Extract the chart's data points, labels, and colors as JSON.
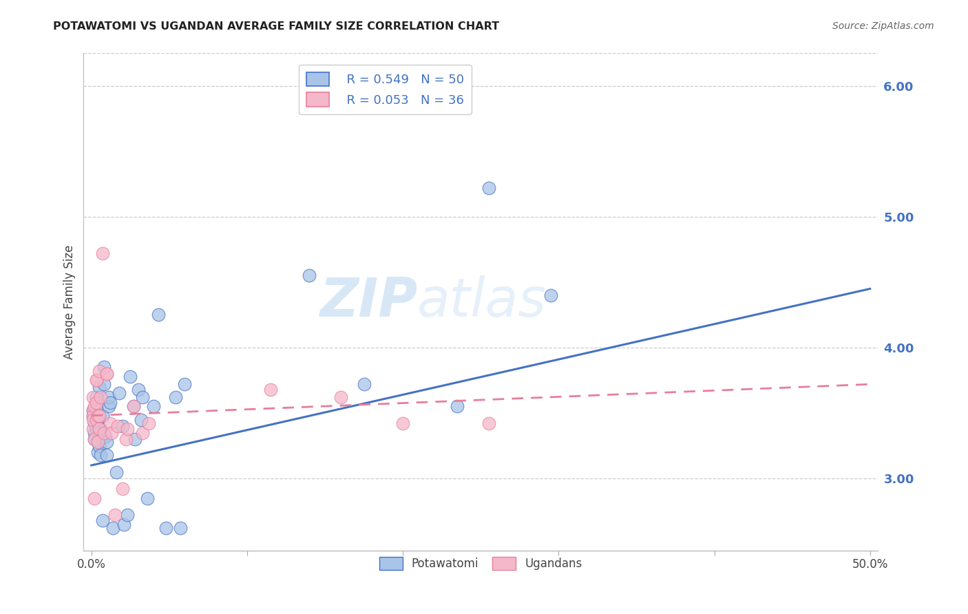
{
  "title": "POTAWATOMI VS UGANDAN AVERAGE FAMILY SIZE CORRELATION CHART",
  "source": "Source: ZipAtlas.com",
  "ylabel": "Average Family Size",
  "watermark_zip": "ZIP",
  "watermark_atlas": "atlas",
  "legend_blue_r": "R = 0.549",
  "legend_blue_n": "N = 50",
  "legend_pink_r": "R = 0.053",
  "legend_pink_n": "N = 36",
  "blue_color": "#A8C4E8",
  "pink_color": "#F5B8CA",
  "blue_edge_color": "#4472C4",
  "pink_edge_color": "#E87E9A",
  "blue_line_color": "#4472C4",
  "pink_line_color": "#E87E9A",
  "blue_scatter": [
    [
      0.001,
      3.52
    ],
    [
      0.001,
      3.48
    ],
    [
      0.002,
      3.35
    ],
    [
      0.002,
      3.3
    ],
    [
      0.002,
      3.42
    ],
    [
      0.003,
      3.38
    ],
    [
      0.003,
      3.55
    ],
    [
      0.003,
      3.62
    ],
    [
      0.004,
      3.28
    ],
    [
      0.004,
      3.2
    ],
    [
      0.004,
      3.45
    ],
    [
      0.005,
      3.38
    ],
    [
      0.005,
      3.7
    ],
    [
      0.005,
      3.25
    ],
    [
      0.006,
      3.18
    ],
    [
      0.006,
      3.38
    ],
    [
      0.007,
      3.48
    ],
    [
      0.007,
      2.68
    ],
    [
      0.008,
      3.72
    ],
    [
      0.008,
      3.85
    ],
    [
      0.009,
      3.32
    ],
    [
      0.01,
      3.18
    ],
    [
      0.01,
      3.28
    ],
    [
      0.011,
      3.55
    ],
    [
      0.011,
      3.62
    ],
    [
      0.012,
      3.58
    ],
    [
      0.014,
      2.62
    ],
    [
      0.016,
      3.05
    ],
    [
      0.018,
      3.65
    ],
    [
      0.02,
      3.4
    ],
    [
      0.021,
      2.65
    ],
    [
      0.023,
      2.72
    ],
    [
      0.025,
      3.78
    ],
    [
      0.027,
      3.55
    ],
    [
      0.028,
      3.3
    ],
    [
      0.03,
      3.68
    ],
    [
      0.032,
      3.45
    ],
    [
      0.033,
      3.62
    ],
    [
      0.036,
      2.85
    ],
    [
      0.04,
      3.55
    ],
    [
      0.043,
      4.25
    ],
    [
      0.048,
      2.62
    ],
    [
      0.054,
      3.62
    ],
    [
      0.057,
      2.62
    ],
    [
      0.06,
      3.72
    ],
    [
      0.14,
      4.55
    ],
    [
      0.175,
      3.72
    ],
    [
      0.235,
      3.55
    ],
    [
      0.255,
      5.22
    ],
    [
      0.295,
      4.4
    ]
  ],
  "pink_scatter": [
    [
      0.001,
      3.52
    ],
    [
      0.001,
      3.48
    ],
    [
      0.001,
      3.38
    ],
    [
      0.001,
      3.45
    ],
    [
      0.001,
      3.62
    ],
    [
      0.002,
      3.55
    ],
    [
      0.002,
      3.3
    ],
    [
      0.002,
      2.85
    ],
    [
      0.003,
      3.75
    ],
    [
      0.003,
      3.75
    ],
    [
      0.003,
      3.45
    ],
    [
      0.003,
      3.58
    ],
    [
      0.004,
      3.28
    ],
    [
      0.004,
      3.48
    ],
    [
      0.005,
      3.82
    ],
    [
      0.005,
      3.38
    ],
    [
      0.005,
      3.48
    ],
    [
      0.006,
      3.62
    ],
    [
      0.007,
      4.72
    ],
    [
      0.008,
      3.35
    ],
    [
      0.01,
      3.8
    ],
    [
      0.01,
      3.8
    ],
    [
      0.012,
      3.42
    ],
    [
      0.013,
      3.35
    ],
    [
      0.015,
      2.72
    ],
    [
      0.017,
      3.4
    ],
    [
      0.02,
      2.92
    ],
    [
      0.022,
      3.3
    ],
    [
      0.023,
      3.38
    ],
    [
      0.027,
      3.55
    ],
    [
      0.033,
      3.35
    ],
    [
      0.037,
      3.42
    ],
    [
      0.115,
      3.68
    ],
    [
      0.16,
      3.62
    ],
    [
      0.2,
      3.42
    ],
    [
      0.255,
      3.42
    ]
  ],
  "blue_line": [
    [
      0.0,
      3.1
    ],
    [
      0.5,
      4.45
    ]
  ],
  "pink_line": [
    [
      0.0,
      3.48
    ],
    [
      0.5,
      3.72
    ]
  ],
  "xlim": [
    -0.005,
    0.505
  ],
  "ylim": [
    2.45,
    6.25
  ],
  "xtick_positions": [
    0.0,
    0.1,
    0.2,
    0.3,
    0.4,
    0.5
  ],
  "xtick_labels_show": [
    "0.0%",
    "",
    "",
    "",
    "",
    "50.0%"
  ],
  "yticks_right": [
    3.0,
    4.0,
    5.0,
    6.0
  ],
  "grid_color": "#CCCCCC",
  "bg_color": "#FFFFFF"
}
